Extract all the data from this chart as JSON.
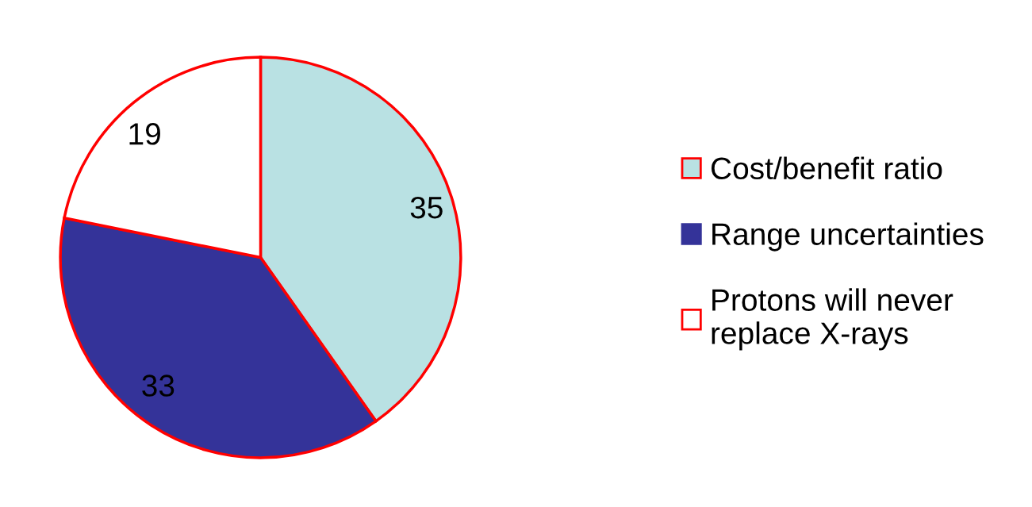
{
  "chart_data": {
    "type": "pie",
    "categories": [
      "Cost/benefit ratio",
      "Range uncertainties",
      "Protons will never\nreplace X-rays"
    ],
    "values": [
      35,
      33,
      19
    ],
    "colors": [
      "#b9e1e3",
      "#343399",
      "#ffffff"
    ],
    "data_labels": true,
    "legend": "right"
  }
}
